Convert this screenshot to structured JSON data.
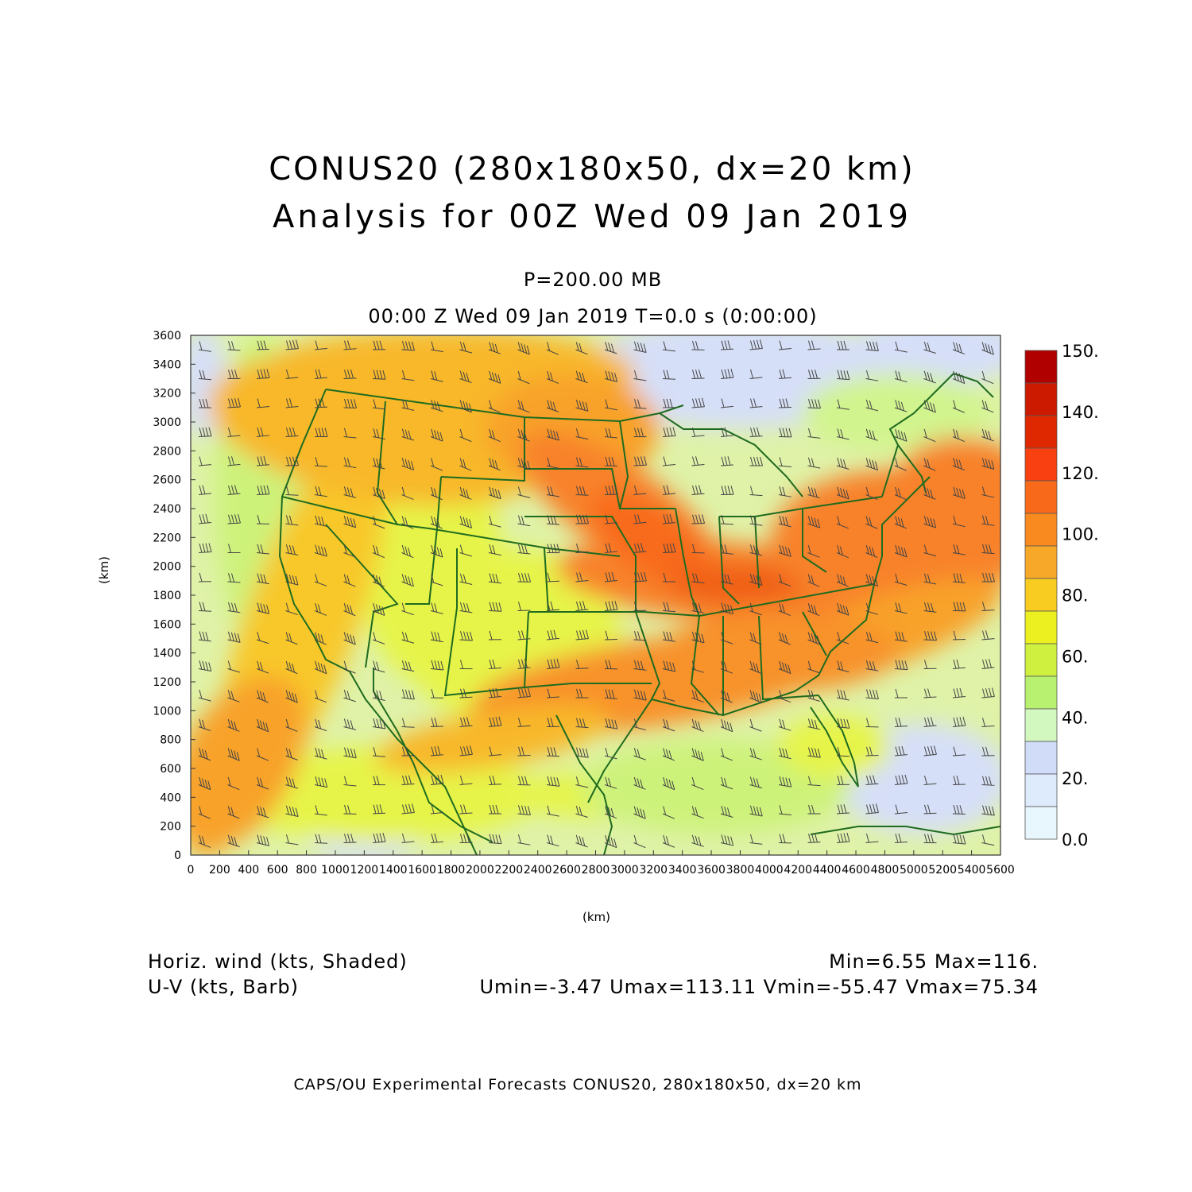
{
  "header": {
    "title_line1": "CONUS20 (280x180x50, dx=20 km)",
    "title_line2": "Analysis for 00Z Wed 09 Jan 2019",
    "level": "P=200.00 MB",
    "valid_time": "00:00 Z Wed 09 Jan 2019    T=0.0 s (0:00:00)"
  },
  "axes": {
    "x_label": "(km)",
    "y_label": "(km)",
    "x_ticks": [
      "0",
      "200",
      "400",
      "600",
      "800",
      "1000",
      "1200",
      "1400",
      "1600",
      "1800",
      "2000",
      "2200",
      "2400",
      "2600",
      "2800",
      "3000",
      "3200",
      "3400",
      "3600",
      "3800",
      "4000",
      "4200",
      "4400",
      "4600",
      "4800",
      "5000",
      "5200",
      "5400",
      "5600"
    ],
    "y_ticks": [
      "0",
      "200",
      "400",
      "600",
      "800",
      "1000",
      "1200",
      "1400",
      "1600",
      "1800",
      "2000",
      "2200",
      "2400",
      "2600",
      "2800",
      "3000",
      "3200",
      "3400",
      "3600"
    ]
  },
  "colorbar": {
    "labels": [
      "150.",
      "140.",
      "120.",
      "100.",
      "80.",
      "60.",
      "40.",
      "20.",
      "0.0"
    ],
    "colors": [
      "#b00000",
      "#cc1a00",
      "#e02800",
      "#f84010",
      "#f86a1a",
      "#f88a20",
      "#f8a828",
      "#f8cc20",
      "#ecf020",
      "#d0f040",
      "#b8f070",
      "#d2f8c0",
      "#d0dcf8",
      "#ddebfc",
      "#e8f6fe"
    ]
  },
  "footer": {
    "field1": "Horiz. wind (kts, Shaded)",
    "field2": "U-V (kts, Barb)",
    "stats1": "Min=6.55 Max=116.",
    "stats2": "Umin=-3.47 Umax=113.11 Vmin=-55.47 Vmax=75.34",
    "credit": "CAPS/OU Experimental Forecasts  CONUS20, 280x180x50, dx=20 km"
  }
}
